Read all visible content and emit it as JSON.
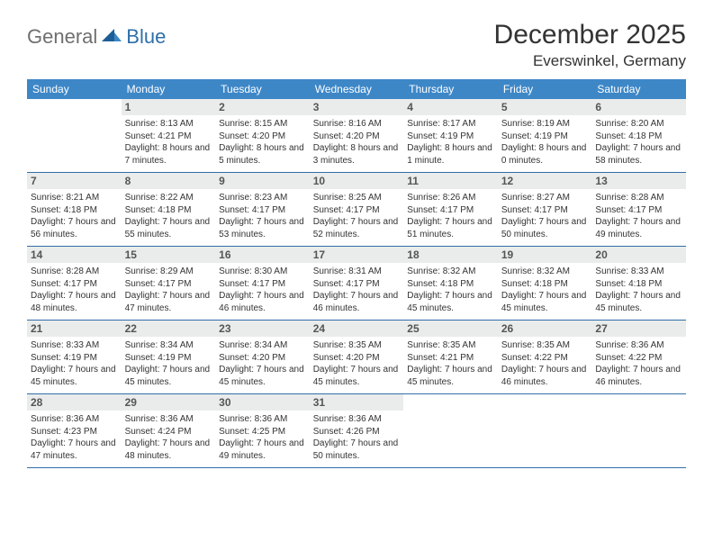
{
  "logo": {
    "part1": "General",
    "part2": "Blue"
  },
  "title": "December 2025",
  "location": "Everswinkel, Germany",
  "colors": {
    "header_bg": "#3d87c7",
    "rule": "#2f6fa8",
    "daynum_bg": "#e9eceb",
    "logo_gray": "#6f6f6f",
    "logo_blue": "#2f6fa8"
  },
  "weekdays": [
    "Sunday",
    "Monday",
    "Tuesday",
    "Wednesday",
    "Thursday",
    "Friday",
    "Saturday"
  ],
  "weeks": [
    [
      null,
      {
        "n": "1",
        "sr": "8:13 AM",
        "ss": "4:21 PM",
        "dl": "8 hours and 7 minutes."
      },
      {
        "n": "2",
        "sr": "8:15 AM",
        "ss": "4:20 PM",
        "dl": "8 hours and 5 minutes."
      },
      {
        "n": "3",
        "sr": "8:16 AM",
        "ss": "4:20 PM",
        "dl": "8 hours and 3 minutes."
      },
      {
        "n": "4",
        "sr": "8:17 AM",
        "ss": "4:19 PM",
        "dl": "8 hours and 1 minute."
      },
      {
        "n": "5",
        "sr": "8:19 AM",
        "ss": "4:19 PM",
        "dl": "8 hours and 0 minutes."
      },
      {
        "n": "6",
        "sr": "8:20 AM",
        "ss": "4:18 PM",
        "dl": "7 hours and 58 minutes."
      }
    ],
    [
      {
        "n": "7",
        "sr": "8:21 AM",
        "ss": "4:18 PM",
        "dl": "7 hours and 56 minutes."
      },
      {
        "n": "8",
        "sr": "8:22 AM",
        "ss": "4:18 PM",
        "dl": "7 hours and 55 minutes."
      },
      {
        "n": "9",
        "sr": "8:23 AM",
        "ss": "4:17 PM",
        "dl": "7 hours and 53 minutes."
      },
      {
        "n": "10",
        "sr": "8:25 AM",
        "ss": "4:17 PM",
        "dl": "7 hours and 52 minutes."
      },
      {
        "n": "11",
        "sr": "8:26 AM",
        "ss": "4:17 PM",
        "dl": "7 hours and 51 minutes."
      },
      {
        "n": "12",
        "sr": "8:27 AM",
        "ss": "4:17 PM",
        "dl": "7 hours and 50 minutes."
      },
      {
        "n": "13",
        "sr": "8:28 AM",
        "ss": "4:17 PM",
        "dl": "7 hours and 49 minutes."
      }
    ],
    [
      {
        "n": "14",
        "sr": "8:28 AM",
        "ss": "4:17 PM",
        "dl": "7 hours and 48 minutes."
      },
      {
        "n": "15",
        "sr": "8:29 AM",
        "ss": "4:17 PM",
        "dl": "7 hours and 47 minutes."
      },
      {
        "n": "16",
        "sr": "8:30 AM",
        "ss": "4:17 PM",
        "dl": "7 hours and 46 minutes."
      },
      {
        "n": "17",
        "sr": "8:31 AM",
        "ss": "4:17 PM",
        "dl": "7 hours and 46 minutes."
      },
      {
        "n": "18",
        "sr": "8:32 AM",
        "ss": "4:18 PM",
        "dl": "7 hours and 45 minutes."
      },
      {
        "n": "19",
        "sr": "8:32 AM",
        "ss": "4:18 PM",
        "dl": "7 hours and 45 minutes."
      },
      {
        "n": "20",
        "sr": "8:33 AM",
        "ss": "4:18 PM",
        "dl": "7 hours and 45 minutes."
      }
    ],
    [
      {
        "n": "21",
        "sr": "8:33 AM",
        "ss": "4:19 PM",
        "dl": "7 hours and 45 minutes."
      },
      {
        "n": "22",
        "sr": "8:34 AM",
        "ss": "4:19 PM",
        "dl": "7 hours and 45 minutes."
      },
      {
        "n": "23",
        "sr": "8:34 AM",
        "ss": "4:20 PM",
        "dl": "7 hours and 45 minutes."
      },
      {
        "n": "24",
        "sr": "8:35 AM",
        "ss": "4:20 PM",
        "dl": "7 hours and 45 minutes."
      },
      {
        "n": "25",
        "sr": "8:35 AM",
        "ss": "4:21 PM",
        "dl": "7 hours and 45 minutes."
      },
      {
        "n": "26",
        "sr": "8:35 AM",
        "ss": "4:22 PM",
        "dl": "7 hours and 46 minutes."
      },
      {
        "n": "27",
        "sr": "8:36 AM",
        "ss": "4:22 PM",
        "dl": "7 hours and 46 minutes."
      }
    ],
    [
      {
        "n": "28",
        "sr": "8:36 AM",
        "ss": "4:23 PM",
        "dl": "7 hours and 47 minutes."
      },
      {
        "n": "29",
        "sr": "8:36 AM",
        "ss": "4:24 PM",
        "dl": "7 hours and 48 minutes."
      },
      {
        "n": "30",
        "sr": "8:36 AM",
        "ss": "4:25 PM",
        "dl": "7 hours and 49 minutes."
      },
      {
        "n": "31",
        "sr": "8:36 AM",
        "ss": "4:26 PM",
        "dl": "7 hours and 50 minutes."
      },
      null,
      null,
      null
    ]
  ],
  "labels": {
    "sunrise": "Sunrise:",
    "sunset": "Sunset:",
    "daylight": "Daylight:"
  }
}
